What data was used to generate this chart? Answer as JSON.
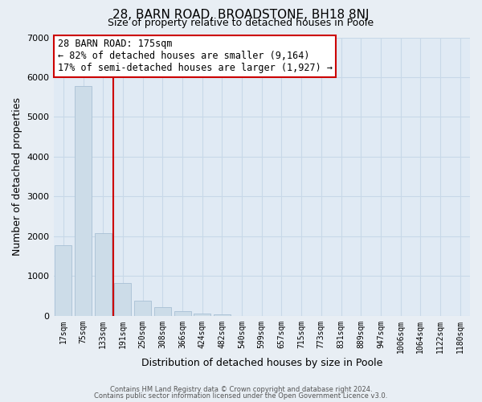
{
  "title_line1": "28, BARN ROAD, BROADSTONE, BH18 8NJ",
  "title_line2": "Size of property relative to detached houses in Poole",
  "xlabel": "Distribution of detached houses by size in Poole",
  "ylabel": "Number of detached properties",
  "bar_labels": [
    "17sqm",
    "75sqm",
    "133sqm",
    "191sqm",
    "250sqm",
    "308sqm",
    "366sqm",
    "424sqm",
    "482sqm",
    "540sqm",
    "599sqm",
    "657sqm",
    "715sqm",
    "773sqm",
    "831sqm",
    "889sqm",
    "947sqm",
    "1006sqm",
    "1064sqm",
    "1122sqm",
    "1180sqm"
  ],
  "bar_values": [
    1780,
    5780,
    2080,
    820,
    380,
    230,
    120,
    60,
    30,
    5,
    5,
    0,
    0,
    0,
    0,
    0,
    0,
    0,
    0,
    0,
    0
  ],
  "bar_color": "#ccdce8",
  "bar_edge_color": "#a8c0d4",
  "grid_color": "#c8d8e8",
  "vline_color": "#cc0000",
  "annotation_title": "28 BARN ROAD: 175sqm",
  "annotation_line1": "← 82% of detached houses are smaller (9,164)",
  "annotation_line2": "17% of semi-detached houses are larger (1,927) →",
  "annotation_box_color": "#ffffff",
  "annotation_box_edge": "#cc0000",
  "ylim": [
    0,
    7000
  ],
  "yticks": [
    0,
    1000,
    2000,
    3000,
    4000,
    5000,
    6000,
    7000
  ],
  "footer1": "Contains HM Land Registry data © Crown copyright and database right 2024.",
  "footer2": "Contains public sector information licensed under the Open Government Licence v3.0.",
  "background_color": "#e8eef4",
  "plot_bg_color": "#e0eaf4"
}
